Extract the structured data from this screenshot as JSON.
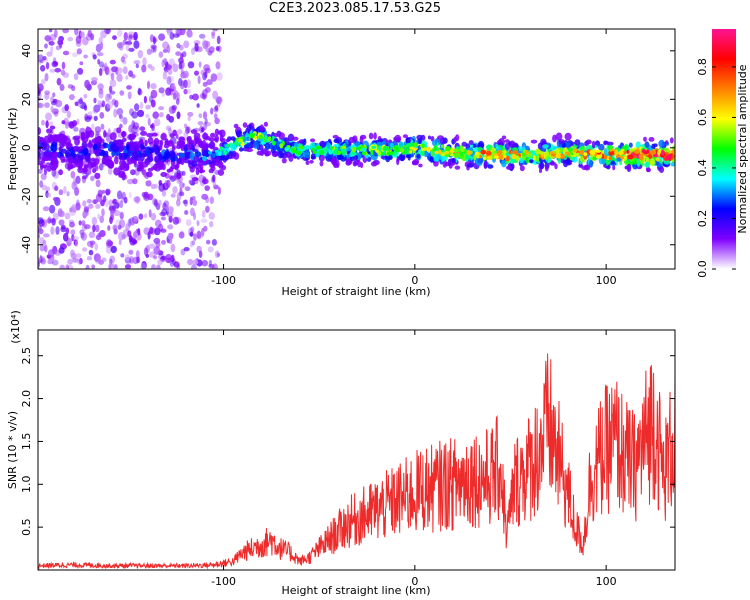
{
  "title": "C2E3.2023.085.17.53.G25",
  "chart_data": [
    {
      "type": "heatmap",
      "title": "",
      "xlabel": "Height of straight line (km)",
      "ylabel": "Frequency (Hz)",
      "xlim": [
        -197,
        136
      ],
      "ylim": [
        -50,
        49
      ],
      "xticks": [
        -100,
        0,
        100
      ],
      "yticks": [
        -40,
        -20,
        0,
        20,
        40
      ],
      "colorbar": {
        "label": "Normalized spectral amplitude",
        "range": [
          0,
          0.95
        ],
        "ticks": [
          "0.0",
          "0.2",
          "0.4",
          "0.6",
          "0.8"
        ],
        "tick_values": [
          0.0,
          0.2,
          0.4,
          0.6,
          0.8
        ],
        "colormap": [
          "#ffffff",
          "#7f00ff",
          "#0000ff",
          "#00ffff",
          "#00ff00",
          "#ffff00",
          "#ff7f00",
          "#ff0000",
          "#ff1493"
        ]
      },
      "ridge": {
        "x": [
          -195,
          -180,
          -160,
          -140,
          -120,
          -105,
          -95,
          -85,
          -75,
          -60,
          -50,
          -40,
          -30,
          -20,
          -10,
          0,
          20,
          40,
          60,
          80,
          100,
          120,
          135
        ],
        "frequency_hz": [
          0,
          -2,
          -1,
          -2,
          -3,
          -3,
          1,
          5,
          2,
          -1,
          -1,
          -1,
          -1,
          -1,
          -1,
          0,
          -2,
          -3,
          -3,
          -2,
          -3,
          -3,
          -3
        ],
        "peak_amplitude": [
          0.3,
          0.25,
          0.3,
          0.25,
          0.35,
          0.3,
          0.45,
          0.55,
          0.45,
          0.45,
          0.4,
          0.5,
          0.45,
          0.5,
          0.5,
          0.55,
          0.6,
          0.7,
          0.6,
          0.6,
          0.7,
          0.85,
          0.8
        ]
      },
      "colors": {
        "axis": "#000000"
      }
    },
    {
      "type": "line",
      "title": "",
      "xlabel": "Height of straight line (km)",
      "ylabel": "SNR (10 * v/v)",
      "y_multiplier": "(x10⁴)",
      "xlim": [
        -197,
        136
      ],
      "ylim": [
        0,
        2.8
      ],
      "xticks": [
        -100,
        0,
        100
      ],
      "yticks": [
        0.5,
        1.0,
        1.5,
        2.0,
        2.5
      ],
      "ytick_labels": [
        "0.5",
        "1.0",
        "1.5",
        "2.0",
        "2.5"
      ],
      "series": [
        {
          "color": "#ee2b2b",
          "x": [
            -197,
            -180,
            -160,
            -140,
            -120,
            -105,
            -95,
            -90,
            -85,
            -80,
            -75,
            -70,
            -65,
            -60,
            -55,
            -50,
            -45,
            -40,
            -35,
            -30,
            -25,
            -20,
            -15,
            -10,
            -5,
            0,
            5,
            10,
            15,
            20,
            25,
            30,
            35,
            40,
            45,
            48,
            52,
            55,
            60,
            65,
            70,
            75,
            80,
            84,
            88,
            92,
            97,
            100,
            105,
            110,
            115,
            120,
            125,
            130,
            136
          ],
          "values": [
            0.05,
            0.06,
            0.05,
            0.05,
            0.05,
            0.06,
            0.1,
            0.2,
            0.25,
            0.3,
            0.35,
            0.25,
            0.2,
            0.1,
            0.15,
            0.25,
            0.35,
            0.45,
            0.55,
            0.6,
            0.65,
            0.7,
            0.75,
            0.8,
            0.85,
            0.9,
            0.95,
            0.95,
            1.0,
            1.0,
            1.05,
            1.1,
            1.05,
            1.1,
            1.2,
            0.4,
            1.0,
            1.1,
            1.2,
            1.4,
            1.7,
            1.3,
            0.9,
            0.5,
            0.3,
            1.1,
            1.3,
            1.4,
            1.5,
            1.3,
            1.2,
            1.5,
            1.8,
            1.1,
            1.6
          ]
        }
      ],
      "colors": {
        "axis": "#000000"
      }
    }
  ]
}
